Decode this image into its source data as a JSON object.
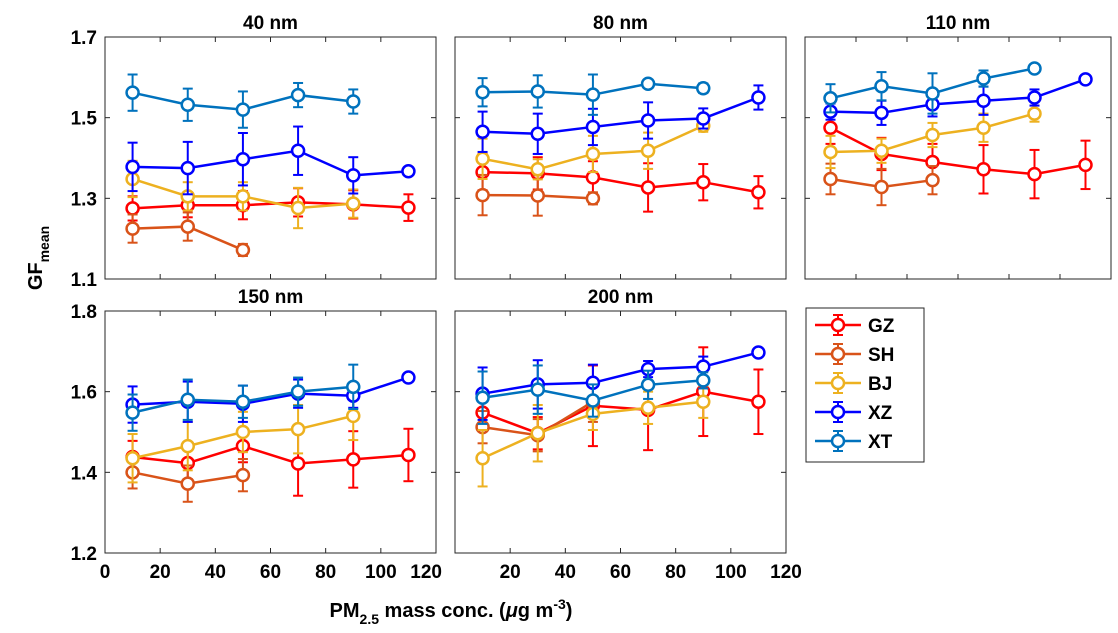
{
  "figure": {
    "ylabel_main": "GF",
    "ylabel_sub": "mean",
    "xlabel_pre": "PM",
    "xlabel_sub": "2.5",
    "xlabel_mid": " mass conc. (",
    "xlabel_mu": "μ",
    "xlabel_unit": "g m",
    "xlabel_sup": "-3",
    "xlabel_end": ")"
  },
  "colors": {
    "GZ": "#ff0000",
    "SH": "#d95319",
    "BJ": "#edb120",
    "XZ": "#0000ff",
    "XT": "#0072bd"
  },
  "legend": [
    "GZ",
    "SH",
    "BJ",
    "XZ",
    "XT"
  ],
  "chart_data": [
    {
      "type": "line",
      "title": "40 nm",
      "xlim": [
        0,
        120
      ],
      "ylim": [
        1.1,
        1.7
      ],
      "yticks": [
        1.1,
        1.3,
        1.5,
        1.7
      ],
      "ytick_labels": [
        "1.1",
        "1.3",
        "1.5",
        "1.7"
      ],
      "x_ticks_labeled": false,
      "series": [
        {
          "name": "GZ",
          "x": [
            10,
            30,
            50,
            70,
            90,
            110
          ],
          "y": [
            1.275,
            1.283,
            1.283,
            1.29,
            1.285,
            1.277
          ],
          "err": [
            0.03,
            0.03,
            0.035,
            0.035,
            0.035,
            0.033
          ]
        },
        {
          "name": "SH",
          "x": [
            10,
            30,
            50
          ],
          "y": [
            1.225,
            1.23,
            1.172
          ],
          "err": [
            0.035,
            0.035,
            0.015
          ]
        },
        {
          "name": "BJ",
          "x": [
            10,
            30,
            50,
            70,
            90
          ],
          "y": [
            1.348,
            1.305,
            1.305,
            1.276,
            1.287
          ],
          "err": [
            0.045,
            0.035,
            0.035,
            0.05,
            0.035
          ]
        },
        {
          "name": "XZ",
          "x": [
            10,
            30,
            50,
            70,
            90,
            110
          ],
          "y": [
            1.378,
            1.375,
            1.397,
            1.418,
            1.357,
            1.367
          ],
          "err": [
            0.06,
            0.065,
            0.065,
            0.06,
            0.045,
            0.008
          ]
        },
        {
          "name": "XT",
          "x": [
            10,
            30,
            50,
            70,
            90
          ],
          "y": [
            1.562,
            1.532,
            1.52,
            1.556,
            1.54
          ],
          "err": [
            0.045,
            0.04,
            0.045,
            0.03,
            0.03
          ]
        }
      ]
    },
    {
      "type": "line",
      "title": "80 nm",
      "xlim": [
        0,
        120
      ],
      "ylim": [
        1.1,
        1.7
      ],
      "yticks": [
        1.1,
        1.3,
        1.5,
        1.7
      ],
      "ytick_labels": [],
      "x_ticks_labeled": false,
      "series": [
        {
          "name": "GZ",
          "x": [
            10,
            30,
            50,
            70,
            90,
            110
          ],
          "y": [
            1.365,
            1.362,
            1.352,
            1.327,
            1.34,
            1.315
          ],
          "err": [
            0.045,
            0.04,
            0.04,
            0.06,
            0.045,
            0.04
          ]
        },
        {
          "name": "SH",
          "x": [
            10,
            30,
            50
          ],
          "y": [
            1.308,
            1.307,
            1.3
          ],
          "err": [
            0.05,
            0.05,
            0.015
          ]
        },
        {
          "name": "BJ",
          "x": [
            10,
            30,
            50,
            70,
            90
          ],
          "y": [
            1.398,
            1.372,
            1.41,
            1.418,
            1.48
          ],
          "err": [
            0.05,
            0.025,
            0.045,
            0.045,
            0.015
          ]
        },
        {
          "name": "XZ",
          "x": [
            10,
            30,
            50,
            70,
            90,
            110
          ],
          "y": [
            1.465,
            1.46,
            1.477,
            1.493,
            1.498,
            1.55
          ],
          "err": [
            0.05,
            0.05,
            0.045,
            0.045,
            0.025,
            0.03
          ]
        },
        {
          "name": "XT",
          "x": [
            10,
            30,
            50,
            70,
            90
          ],
          "y": [
            1.563,
            1.565,
            1.557,
            1.584,
            1.573
          ],
          "err": [
            0.035,
            0.04,
            0.05,
            0.01,
            0.012
          ]
        }
      ]
    },
    {
      "type": "line",
      "title": "110 nm",
      "xlim": [
        0,
        120
      ],
      "ylim": [
        1.1,
        1.7
      ],
      "yticks": [
        1.1,
        1.3,
        1.5,
        1.7
      ],
      "ytick_labels": [],
      "x_ticks_labeled": false,
      "series": [
        {
          "name": "GZ",
          "x": [
            10,
            30,
            50,
            70,
            90,
            110
          ],
          "y": [
            1.475,
            1.41,
            1.39,
            1.372,
            1.36,
            1.383
          ],
          "err": [
            0.04,
            0.04,
            0.045,
            0.06,
            0.06,
            0.06
          ]
        },
        {
          "name": "SH",
          "x": [
            10,
            30,
            50
          ],
          "y": [
            1.348,
            1.328,
            1.345
          ],
          "err": [
            0.038,
            0.045,
            0.035
          ]
        },
        {
          "name": "BJ",
          "x": [
            10,
            30,
            50,
            70,
            90
          ],
          "y": [
            1.415,
            1.418,
            1.457,
            1.475,
            1.51
          ],
          "err": [
            0.04,
            0.03,
            0.03,
            0.035,
            0.02
          ]
        },
        {
          "name": "XZ",
          "x": [
            10,
            30,
            50,
            70,
            90,
            110
          ],
          "y": [
            1.515,
            1.512,
            1.533,
            1.542,
            1.55,
            1.595
          ],
          "err": [
            0.02,
            0.03,
            0.03,
            0.035,
            0.02,
            0.01
          ]
        },
        {
          "name": "XT",
          "x": [
            10,
            30,
            50,
            70,
            90
          ],
          "y": [
            1.548,
            1.578,
            1.56,
            1.597,
            1.622
          ],
          "err": [
            0.035,
            0.035,
            0.05,
            0.02,
            0.01
          ]
        }
      ]
    },
    {
      "type": "line",
      "title": "150 nm",
      "xlim": [
        0,
        120
      ],
      "ylim": [
        1.2,
        1.8
      ],
      "yticks": [
        1.2,
        1.4,
        1.6,
        1.8
      ],
      "ytick_labels": [
        "1.2",
        "1.4",
        "1.6",
        "1.8"
      ],
      "x_ticks_labeled": true,
      "xticks": [
        0,
        20,
        40,
        60,
        80,
        100,
        120
      ],
      "xtick_labels": [
        "0",
        "20",
        "40",
        "60",
        "80",
        "100",
        "120"
      ],
      "series": [
        {
          "name": "GZ",
          "x": [
            10,
            30,
            50,
            70,
            90,
            110
          ],
          "y": [
            1.438,
            1.423,
            1.465,
            1.422,
            1.432,
            1.443
          ],
          "err": [
            0.04,
            0.04,
            0.04,
            0.08,
            0.07,
            0.065
          ]
        },
        {
          "name": "SH",
          "x": [
            10,
            30,
            50
          ],
          "y": [
            1.4,
            1.372,
            1.393
          ],
          "err": [
            0.04,
            0.045,
            0.04
          ]
        },
        {
          "name": "BJ",
          "x": [
            10,
            30,
            50,
            70,
            90
          ],
          "y": [
            1.435,
            1.465,
            1.5,
            1.507,
            1.54
          ],
          "err": [
            0.06,
            0.06,
            0.05,
            0.06,
            0.06
          ]
        },
        {
          "name": "XZ",
          "x": [
            10,
            30,
            50,
            70,
            90,
            110
          ],
          "y": [
            1.568,
            1.575,
            1.57,
            1.595,
            1.59,
            1.635
          ],
          "err": [
            0.045,
            0.05,
            0.045,
            0.035,
            0.03,
            0.008
          ]
        },
        {
          "name": "XT",
          "x": [
            10,
            30,
            50,
            70,
            90
          ],
          "y": [
            1.548,
            1.58,
            1.575,
            1.6,
            1.612
          ],
          "err": [
            0.045,
            0.05,
            0.04,
            0.035,
            0.055
          ]
        }
      ]
    },
    {
      "type": "line",
      "title": "200 nm",
      "xlim": [
        0,
        120
      ],
      "ylim": [
        1.2,
        1.8
      ],
      "yticks": [
        1.2,
        1.4,
        1.6,
        1.8
      ],
      "ytick_labels": [],
      "x_ticks_labeled": true,
      "xticks": [
        0,
        20,
        40,
        60,
        80,
        100,
        120
      ],
      "xtick_labels": [
        "",
        "20",
        "40",
        "60",
        "80",
        "100",
        "120"
      ],
      "series": [
        {
          "name": "GZ",
          "x": [
            10,
            30,
            50,
            70,
            90,
            110
          ],
          "y": [
            1.548,
            1.497,
            1.565,
            1.555,
            1.6,
            1.575
          ],
          "err": [
            0.04,
            0.04,
            0.1,
            0.1,
            0.11,
            0.08
          ]
        },
        {
          "name": "SH",
          "x": [
            10,
            30,
            50
          ],
          "y": [
            1.512,
            1.492,
            1.575
          ],
          "err": [
            0.04,
            0.04,
            0.05
          ]
        },
        {
          "name": "BJ",
          "x": [
            10,
            30,
            50,
            70,
            90
          ],
          "y": [
            1.435,
            1.497,
            1.545,
            1.56,
            1.575
          ],
          "err": [
            0.07,
            0.07,
            0.04,
            0.04,
            0.04
          ]
        },
        {
          "name": "XZ",
          "x": [
            10,
            30,
            50,
            70,
            90,
            110
          ],
          "y": [
            1.595,
            1.618,
            1.622,
            1.656,
            1.662,
            1.697
          ],
          "err": [
            0.065,
            0.06,
            0.045,
            0.02,
            0.025,
            0.008
          ]
        },
        {
          "name": "XT",
          "x": [
            10,
            30,
            50,
            70,
            90
          ],
          "y": [
            1.585,
            1.605,
            1.578,
            1.617,
            1.628
          ],
          "err": [
            0.065,
            0.06,
            0.04,
            0.035,
            0.02
          ]
        }
      ]
    }
  ]
}
